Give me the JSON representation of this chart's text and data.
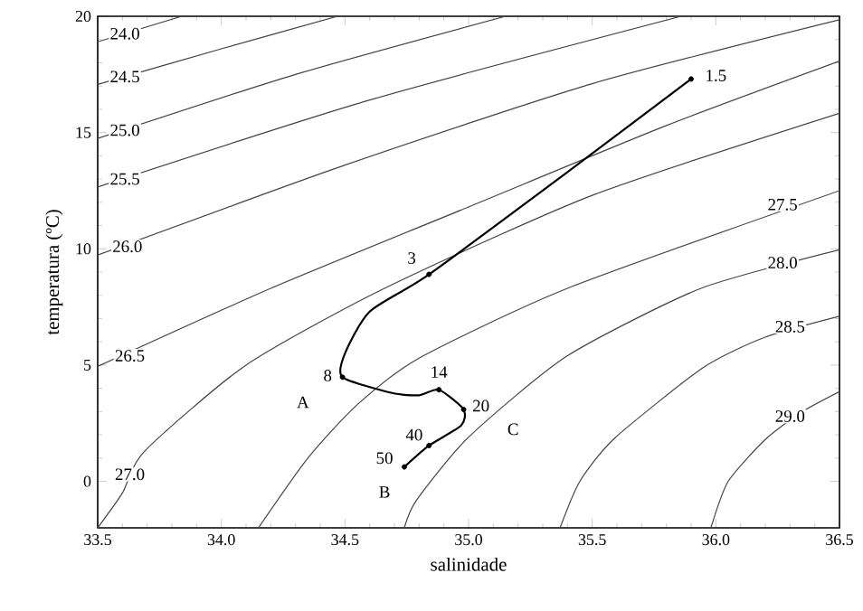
{
  "chart_data": {
    "type": "line",
    "xlabel": "salinidade",
    "ylabel": "temperatura (ºC)",
    "xlim": [
      33.5,
      36.5
    ],
    "ylim": [
      -2,
      20
    ],
    "xticks": [
      {
        "value": 33.5,
        "label": "33.5"
      },
      {
        "value": 34.0,
        "label": "34.0"
      },
      {
        "value": 34.5,
        "label": "34.5"
      },
      {
        "value": 35.0,
        "label": "35.0"
      },
      {
        "value": 35.5,
        "label": "35.5"
      },
      {
        "value": 36.0,
        "label": "36.0"
      },
      {
        "value": 36.5,
        "label": "36.5"
      }
    ],
    "yticks": [
      0,
      5,
      10,
      15,
      20
    ],
    "marker": "none",
    "line_style": "solid",
    "series": [
      {
        "color": "#444444",
        "x": [
          33.5,
          33.84
        ],
        "values": [
          18.9,
          20
        ]
      },
      {
        "color": "#444444",
        "x": [
          33.5,
          34.0,
          34.47
        ],
        "values": [
          17.07,
          18.6,
          20
        ]
      },
      {
        "color": "#444444",
        "x": [
          33.5,
          34.3,
          35.15
        ],
        "values": [
          14.75,
          17.5,
          20
        ]
      },
      {
        "color": "#444444",
        "x": [
          33.5,
          34.6,
          35.86
        ],
        "values": [
          12.66,
          16.4,
          20
        ]
      },
      {
        "color": "#444444",
        "x": [
          33.5,
          34.5,
          35.5,
          36.5
        ],
        "values": [
          9.73,
          13.6,
          17.1,
          19.85
        ]
      },
      {
        "color": "#444444",
        "x": [
          33.5,
          34.2,
          35.0,
          35.8,
          36.5
        ],
        "values": [
          4.94,
          8.3,
          11.8,
          15.3,
          18.07
        ]
      },
      {
        "color": "#444444",
        "x": [
          33.5,
          33.6,
          33.69,
          34.1,
          34.66,
          35.5,
          36.5
        ],
        "values": [
          -2,
          -0.5,
          1.3,
          5.0,
          8.3,
          12.3,
          15.83
        ]
      },
      {
        "color": "#444444",
        "x": [
          34.15,
          34.35,
          34.55,
          34.8,
          35.4,
          36.5
        ],
        "values": [
          -2,
          1,
          3.3,
          5.3,
          8.3,
          12.5
        ]
      },
      {
        "color": "#444444",
        "x": [
          34.74,
          34.79,
          35.0,
          35.4,
          35.94,
          36.5
        ],
        "values": [
          -2,
          -0.8,
          1.9,
          5.4,
          8.3,
          9.96
        ]
      },
      {
        "color": "#444444",
        "x": [
          35.37,
          35.45,
          35.59,
          35.95,
          36.2,
          36.5
        ],
        "values": [
          -2,
          0,
          1.85,
          4.9,
          6.2,
          7.1
        ]
      },
      {
        "color": "#444444",
        "x": [
          35.98,
          36.05,
          36.2,
          36.35,
          36.5
        ],
        "values": [
          -2,
          0,
          1.8,
          3.0,
          3.86
        ]
      },
      {
        "color": "#000000",
        "x": [
          35.9,
          35.4,
          34.84,
          34.6,
          34.5,
          34.49,
          34.69,
          34.8,
          34.88,
          34.98,
          34.97,
          34.84,
          34.74
        ],
        "values": [
          17.3,
          13.3,
          8.9,
          7.3,
          5.5,
          4.48,
          3.8,
          3.7,
          3.94,
          3.09,
          2.4,
          1.54,
          0.62
        ]
      },
      {
        "type": "scatter",
        "marker": "circle",
        "color": "#000000",
        "x": [
          35.9,
          34.84,
          34.49,
          34.88,
          34.98,
          34.84,
          34.74
        ],
        "values": [
          17.3,
          8.9,
          4.48,
          3.94,
          3.09,
          1.54,
          0.62
        ]
      }
    ],
    "annotations": [
      {
        "text": "24.0",
        "x": 33.61,
        "y": 19.25
      },
      {
        "text": "24.5",
        "x": 33.61,
        "y": 17.4
      },
      {
        "text": "25.0",
        "x": 33.61,
        "y": 15.1
      },
      {
        "text": "25.5",
        "x": 33.61,
        "y": 13.0
      },
      {
        "text": "26.0",
        "x": 33.62,
        "y": 10.1
      },
      {
        "text": "26.5",
        "x": 33.63,
        "y": 5.4
      },
      {
        "text": "27.0",
        "x": 33.63,
        "y": 0.3
      },
      {
        "text": "27.5",
        "x": 36.27,
        "y": 11.9
      },
      {
        "text": "28.0",
        "x": 36.27,
        "y": 9.4
      },
      {
        "text": "28.5",
        "x": 36.3,
        "y": 6.65
      },
      {
        "text": "29.0",
        "x": 36.3,
        "y": 2.8
      },
      {
        "text": "1.5",
        "x": 36.0,
        "y": 17.45
      },
      {
        "text": "3",
        "x": 34.77,
        "y": 9.6
      },
      {
        "text": "8",
        "x": 34.43,
        "y": 4.55
      },
      {
        "text": "14",
        "x": 34.88,
        "y": 4.7
      },
      {
        "text": "20",
        "x": 35.05,
        "y": 3.25
      },
      {
        "text": "40",
        "x": 34.78,
        "y": 2.0
      },
      {
        "text": "50",
        "x": 34.66,
        "y": 1.0
      },
      {
        "text": "A",
        "x": 34.33,
        "y": 3.4
      },
      {
        "text": "B",
        "x": 34.66,
        "y": -0.46
      },
      {
        "text": "C",
        "x": 35.18,
        "y": 2.24
      }
    ]
  }
}
